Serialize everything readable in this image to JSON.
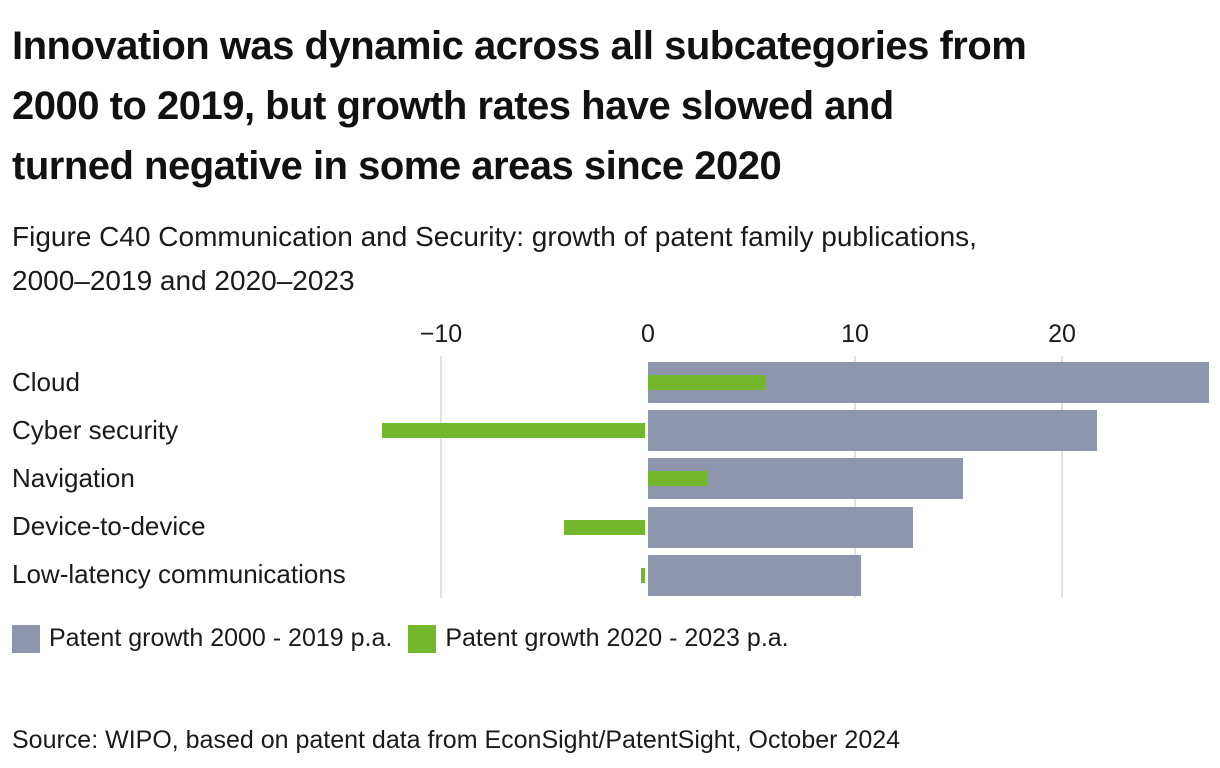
{
  "title": "Innovation was dynamic across all subcategories from\n2000 to 2019, but growth rates have slowed and\nturned negative in some areas since 2020",
  "subtitle": "Figure C40 Communication and Security: growth of patent family publications,\n2000–2019 and 2020–2023",
  "source": "Source: WIPO, based on patent data from EconSight/PatentSight, October 2024",
  "colors": {
    "series_2000_2019": "#8d96ad",
    "series_2020_2023": "#73b72c",
    "gridline": "#e2e2e2",
    "text": "#1a1a1a"
  },
  "legend": {
    "items": [
      {
        "label": "Patent growth 2000 - 2019 p.a.",
        "color": "#8d96ad"
      },
      {
        "label": "Patent growth 2020 - 2023 p.a.",
        "color": "#73b72c"
      }
    ]
  },
  "chart_data": {
    "type": "bar",
    "orientation": "horizontal",
    "title": "Figure C40 Communication and Security: growth of patent family publications, 2000–2019 and 2020–2023",
    "categories": [
      "Cloud",
      "Cyber security",
      "Navigation",
      "Device-to-device",
      "Low-latency communications"
    ],
    "series": [
      {
        "name": "Patent growth 2000 - 2019 p.a.",
        "color": "#8d96ad",
        "values": [
          27.1,
          21.7,
          15.2,
          12.8,
          10.3
        ]
      },
      {
        "name": "Patent growth 2020 - 2023 p.a.",
        "color": "#73b72c",
        "values": [
          5.7,
          -12.7,
          2.9,
          -3.9,
          -0.2
        ]
      }
    ],
    "xlabel": "",
    "ylabel": "",
    "x_tick_values": [
      -10,
      0,
      10,
      20
    ],
    "x_tick_labels": [
      "−10",
      "0",
      "10",
      "20"
    ],
    "xlim": [
      -13,
      27.6
    ],
    "grid": "vertical-light",
    "gridline_ticks": [
      -10,
      10,
      20
    ],
    "legend_position": "bottom",
    "unit": "percent growth p.a."
  }
}
